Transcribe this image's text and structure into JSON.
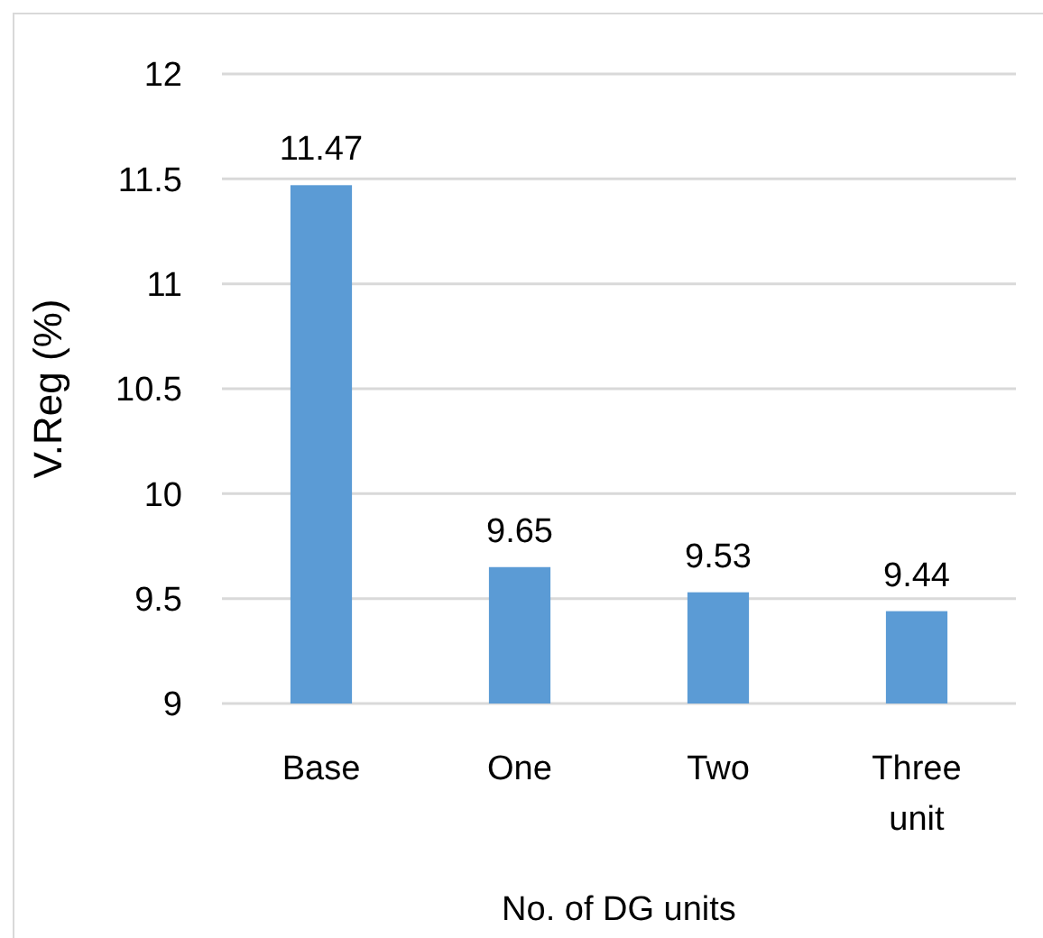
{
  "chart_data": {
    "type": "bar",
    "xlabel": "No. of DG units",
    "ylabel": "V.Reg (%)",
    "categories": [
      "Base",
      "One",
      "Two",
      "Three unit"
    ],
    "values": [
      11.47,
      9.65,
      9.53,
      9.44
    ],
    "color": "#5b9bd5",
    "ylim": [
      9,
      12
    ],
    "yticks": [
      9,
      9.5,
      10,
      10.5,
      11,
      11.5,
      12
    ],
    "grid": "y",
    "data_labels": true
  }
}
